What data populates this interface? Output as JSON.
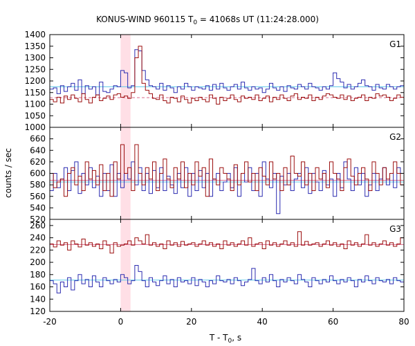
{
  "chart_data": {
    "type": "line",
    "title": {
      "prefix": "KONUS-WIND 960115 T",
      "sub": "0",
      "suffix": " = 41068s UT (11:24:28.000)"
    },
    "xlabel": {
      "prefix": "T - T",
      "sub": "0",
      "suffix": ", s"
    },
    "ylabel": "counts / sec",
    "xlim": [
      -20,
      80
    ],
    "xticks": [
      -20,
      0,
      20,
      40,
      60,
      80
    ],
    "highlight_interval": [
      0,
      2.8
    ],
    "colors": {
      "blue": "#2b2bb0",
      "red": "#9b0d0d",
      "blue_background": "#5ec8e8",
      "red_background": "#d76a8a",
      "highlight": "#ffdfe6"
    },
    "panels": [
      {
        "label": "G1",
        "ylim": [
          1000,
          1400
        ],
        "yticks": [
          1000,
          1050,
          1100,
          1150,
          1200,
          1250,
          1300,
          1350,
          1400
        ],
        "step": 1.0,
        "background": {
          "blue": 1175,
          "red": 1128
        },
        "series": [
          {
            "color": "blue",
            "values": [
              1165,
              1170,
              1145,
              1180,
              1155,
              1175,
              1190,
              1160,
              1205,
              1145,
              1180,
              1165,
              1175,
              1140,
              1195,
              1155,
              1150,
              1165,
              1180,
              1175,
              1245,
              1235,
              1170,
              1180,
              1335,
              1330,
              1245,
              1205,
              1180,
              1175,
              1165,
              1190,
              1160,
              1180,
              1170,
              1150,
              1175,
              1165,
              1190,
              1175,
              1160,
              1175,
              1170,
              1165,
              1180,
              1160,
              1185,
              1165,
              1190,
              1170,
              1160,
              1175,
              1185,
              1165,
              1195,
              1170,
              1160,
              1175,
              1165,
              1170,
              1150,
              1165,
              1190,
              1170,
              1160,
              1175,
              1155,
              1180,
              1170,
              1165,
              1185,
              1175,
              1165,
              1190,
              1175,
              1170,
              1160,
              1175,
              1165,
              1180,
              1235,
              1210,
              1195,
              1170,
              1185,
              1165,
              1175,
              1190,
              1205,
              1180,
              1175,
              1160,
              1185,
              1170,
              1165,
              1185,
              1175,
              1165,
              1175,
              1180
            ]
          },
          {
            "color": "red",
            "values": [
              1120,
              1110,
              1130,
              1105,
              1135,
              1120,
              1140,
              1125,
              1110,
              1145,
              1120,
              1105,
              1130,
              1140,
              1115,
              1125,
              1135,
              1120,
              1140,
              1145,
              1130,
              1135,
              1125,
              1150,
              1300,
              1350,
              1190,
              1160,
              1145,
              1125,
              1120,
              1140,
              1115,
              1105,
              1130,
              1125,
              1110,
              1135,
              1120,
              1105,
              1125,
              1115,
              1130,
              1120,
              1110,
              1140,
              1125,
              1100,
              1130,
              1115,
              1125,
              1140,
              1120,
              1110,
              1135,
              1125,
              1130,
              1120,
              1140,
              1115,
              1125,
              1135,
              1110,
              1130,
              1120,
              1140,
              1125,
              1115,
              1135,
              1145,
              1120,
              1130,
              1125,
              1140,
              1115,
              1130,
              1120,
              1135,
              1145,
              1140,
              1130,
              1125,
              1140,
              1120,
              1135,
              1115,
              1125,
              1130,
              1140,
              1115,
              1130,
              1125,
              1145,
              1135,
              1140,
              1130,
              1115,
              1125,
              1140,
              1130
            ]
          }
        ]
      },
      {
        "label": "G2",
        "ylim": [
          520,
          680
        ],
        "yticks": [
          520,
          540,
          560,
          580,
          600,
          620,
          640,
          660
        ],
        "step": 1.0,
        "background": {
          "blue": 585,
          "red": 588
        },
        "series": [
          {
            "color": "blue",
            "values": [
              570,
              600,
              575,
              590,
              610,
              570,
              605,
              620,
              565,
              600,
              580,
              610,
              575,
              595,
              560,
              600,
              570,
              615,
              560,
              600,
              575,
              600,
              590,
              620,
              580,
              610,
              570,
              600,
              565,
              605,
              575,
              610,
              570,
              595,
              580,
              565,
              600,
              575,
              610,
              560,
              600,
              570,
              605,
              575,
              600,
              560,
              590,
              600,
              570,
              585,
              600,
              575,
              610,
              560,
              600,
              585,
              610,
              570,
              600,
              560,
              620,
              590,
              575,
              600,
              530,
              595,
              580,
              600,
              570,
              590,
              600,
              575,
              610,
              565,
              600,
              585,
              570,
              605,
              580,
              590,
              560,
              600,
              575,
              620,
              590,
              570,
              610,
              580,
              600,
              560,
              580,
              600,
              570,
              590,
              610,
              580,
              600,
              575,
              610,
              600
            ]
          },
          {
            "color": "red",
            "values": [
              600,
              575,
              585,
              590,
              560,
              600,
              610,
              580,
              595,
              570,
              620,
              590,
              605,
              580,
              615,
              570,
              600,
              560,
              620,
              590,
              650,
              600,
              610,
              570,
              650,
              600,
              580,
              610,
              590,
              620,
              570,
              600,
              625,
              590,
              575,
              610,
              590,
              620,
              575,
              600,
              580,
              620,
              595,
              610,
              560,
              625,
              590,
              580,
              610,
              600,
              590,
              570,
              615,
              580,
              600,
              620,
              585,
              600,
              570,
              610,
              595,
              580,
              620,
              590,
              600,
              570,
              610,
              580,
              630,
              600,
              595,
              620,
              580,
              600,
              570,
              610,
              590,
              600,
              575,
              620,
              600,
              590,
              570,
              610,
              625,
              595,
              580,
              600,
              610,
              590,
              570,
              620,
              600,
              580,
              610,
              590,
              600,
              620,
              600,
              580
            ]
          }
        ]
      },
      {
        "label": "G3",
        "ylim": [
          120,
          270
        ],
        "yticks": [
          120,
          140,
          160,
          180,
          200,
          220,
          240,
          260
        ],
        "step": 1.0,
        "background": {
          "blue": 171,
          "red": 229
        },
        "series": [
          {
            "color": "blue",
            "values": [
              170,
              165,
              150,
              168,
              160,
              175,
              155,
              170,
              180,
              165,
              172,
              160,
              178,
              168,
              160,
              175,
              170,
              165,
              172,
              168,
              180,
              175,
              165,
              170,
              195,
              185,
              170,
              160,
              175,
              168,
              162,
              170,
              178,
              165,
              172,
              160,
              175,
              168,
              170,
              165,
              175,
              162,
              172,
              168,
              160,
              170,
              165,
              178,
              170,
              168,
              172,
              165,
              175,
              170,
              162,
              168,
              172,
              190,
              170,
              165,
              175,
              168,
              180,
              170,
              160,
              172,
              168,
              175,
              170,
              165,
              180,
              172,
              168,
              160,
              175,
              170,
              165,
              172,
              168,
              178,
              170,
              165,
              172,
              168,
              175,
              170,
              160,
              172,
              168,
              178,
              170,
              165,
              175,
              170,
              168,
              172,
              165,
              175,
              170,
              168
            ]
          },
          {
            "color": "red",
            "values": [
              230,
              225,
              235,
              228,
              232,
              220,
              235,
              230,
              225,
              238,
              228,
              232,
              226,
              230,
              222,
              235,
              228,
              215,
              232,
              226,
              228,
              230,
              235,
              228,
              240,
              235,
              230,
              245,
              228,
              232,
              226,
              230,
              222,
              235,
              228,
              232,
              226,
              234,
              228,
              230,
              232,
              226,
              230,
              235,
              228,
              232,
              226,
              230,
              222,
              235,
              228,
              232,
              226,
              230,
              235,
              228,
              240,
              226,
              230,
              232,
              222,
              235,
              228,
              232,
              226,
              230,
              235,
              228,
              232,
              226,
              250,
              228,
              234,
              228,
              230,
              232,
              226,
              230,
              235,
              228,
              232,
              226,
              230,
              222,
              235,
              228,
              232,
              226,
              230,
              245,
              228,
              232,
              226,
              230,
              235,
              228,
              232,
              226,
              230,
              240
            ]
          }
        ]
      }
    ]
  }
}
